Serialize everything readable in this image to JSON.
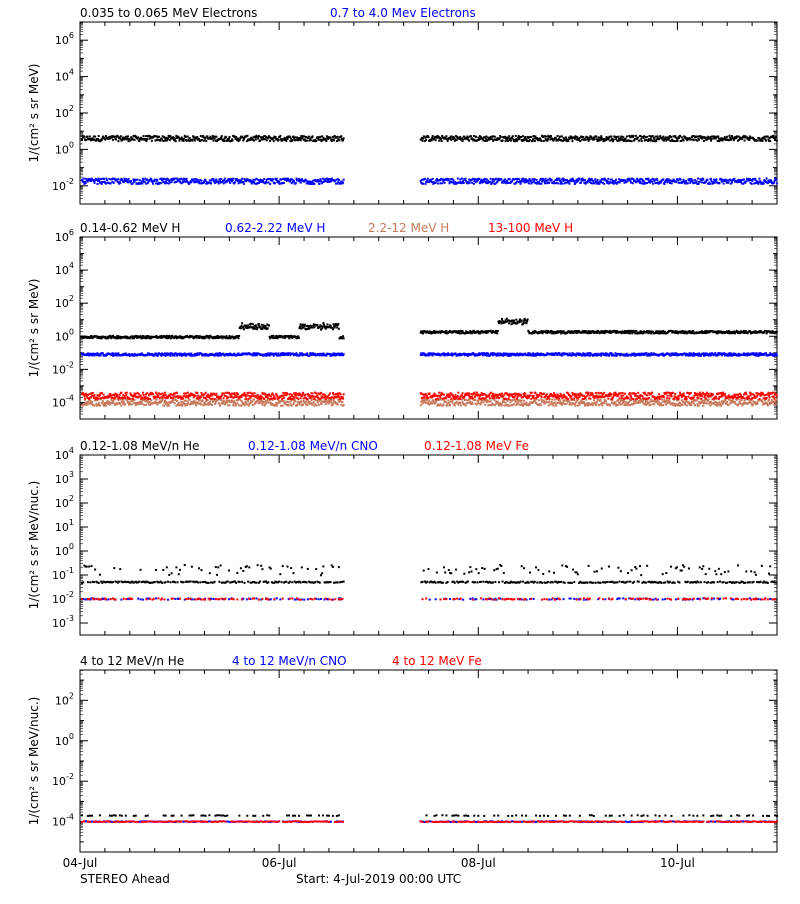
{
  "chart_data": [
    {
      "type": "scatter",
      "ylabel": "1/(cm² s sr MeV)",
      "yscale": "log",
      "ylim_log10": [
        -3,
        7
      ],
      "yticks": [
        -2,
        0,
        2,
        4,
        6
      ],
      "gap": [
        2.65,
        3.42
      ],
      "series": [
        {
          "name": "0.035 to 0.065 MeV Electrons",
          "color": "#000000",
          "log_level": 0.6
        },
        {
          "name": "0.7 to 4.0 Mev Electrons",
          "color": "#0000ff",
          "log_level": -1.75
        }
      ]
    },
    {
      "type": "scatter",
      "ylabel": "1/(cm² s sr MeV)",
      "yscale": "log",
      "ylim_log10": [
        -5,
        6
      ],
      "yticks": [
        -4,
        -2,
        0,
        2,
        4,
        6
      ],
      "gap": [
        2.65,
        3.42
      ],
      "series": [
        {
          "name": "0.14-0.62 MeV H",
          "color": "#000000",
          "log_level": -0.05
        },
        {
          "name": "0.62-2.22 MeV H",
          "color": "#0000ff",
          "log_level": -1.1
        },
        {
          "name": "2.2-12 MeV H",
          "color": "#c8785a",
          "log_level": -4.0
        },
        {
          "name": "13-100 MeV H",
          "color": "#ff0000",
          "log_level": -3.6
        }
      ]
    },
    {
      "type": "scatter",
      "ylabel": "1/(cm² s sr MeV/nuc.)",
      "yscale": "log",
      "ylim_log10": [
        -3.5,
        4
      ],
      "yticks": [
        -3,
        -2,
        -1,
        0,
        1,
        2,
        3,
        4
      ],
      "gap": [
        2.65,
        3.42
      ],
      "series": [
        {
          "name": "0.12-1.08 MeV/n He",
          "color": "#000000",
          "log_level": -1.3
        },
        {
          "name": "0.12-1.08 MeV/n CNO",
          "color": "#0000ff",
          "log_level": -2.0
        },
        {
          "name": "0.12-1.08 MeV Fe",
          "color": "#ff0000",
          "log_level": -2.0
        }
      ]
    },
    {
      "type": "scatter",
      "ylabel": "1/(cm² s sr MeV/nuc.)",
      "yscale": "log",
      "ylim_log10": [
        -5.5,
        3.5
      ],
      "yticks": [
        -4,
        -2,
        0,
        2
      ],
      "gap": [
        2.65,
        3.42
      ],
      "series": [
        {
          "name": "4 to 12 MeV/n He",
          "color": "#000000",
          "log_level": -3.7
        },
        {
          "name": "4 to 12 MeV/n CNO",
          "color": "#0000ff",
          "log_level": -4.0
        },
        {
          "name": "4 to 12 MeV Fe",
          "color": "#ff0000",
          "log_level": -4.0
        }
      ]
    }
  ],
  "x_axis": {
    "range_days": [
      0,
      7
    ],
    "ticks": [
      {
        "day": 0,
        "label": "04-Jul"
      },
      {
        "day": 2,
        "label": "06-Jul"
      },
      {
        "day": 4,
        "label": "08-Jul"
      },
      {
        "day": 6,
        "label": "10-Jul"
      }
    ]
  },
  "footer": {
    "spacecraft": "STEREO Ahead",
    "start": "Start:  4-Jul-2019 00:00 UTC"
  }
}
